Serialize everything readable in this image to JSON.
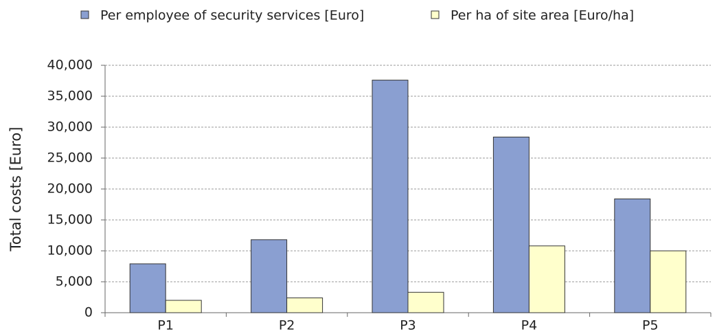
{
  "chart_data": {
    "type": "bar",
    "y_label": "Total costs [Euro]",
    "categories": [
      "P1",
      "P2",
      "P3",
      "P4",
      "P5"
    ],
    "series": [
      {
        "name": "Per employee of security services [Euro]",
        "color": "#8a9fd1",
        "values": [
          7900,
          11800,
          37600,
          28400,
          18400
        ]
      },
      {
        "name": "Per ha of site area [Euro/ha]",
        "color": "#ffffcc",
        "values": [
          2000,
          2400,
          3300,
          10800,
          10000
        ]
      }
    ],
    "ylim": [
      0,
      40000
    ],
    "yticks": [
      0,
      {
        "value": 5000,
        "label": "5,000"
      },
      {
        "value": 10000,
        "label": "10,000"
      },
      {
        "value": 15000,
        "label": "15,000"
      },
      {
        "value": 20000,
        "label": "20,000"
      },
      {
        "value": 25000,
        "label": "25,000"
      },
      {
        "value": 30000,
        "label": "30,000"
      },
      {
        "value": 35000,
        "label": "35,000"
      },
      {
        "value": 40000,
        "label": "40,000"
      }
    ],
    "grid": true,
    "legend": "top"
  }
}
